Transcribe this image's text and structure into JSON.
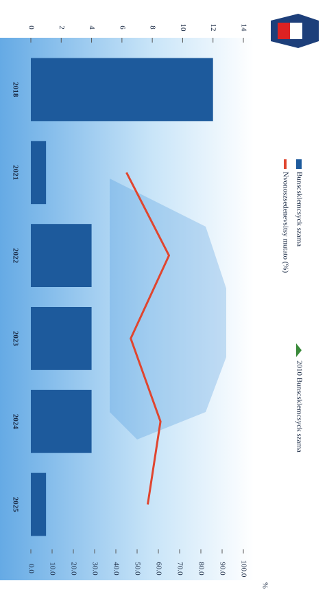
{
  "chart_data": {
    "type": "bar_line",
    "categories": [
      "2018",
      "2021",
      "2022",
      "2023",
      "2024",
      "2025"
    ],
    "series": [
      {
        "name": "Bunscsklemcsyck szama",
        "color": "#1d5a9c",
        "values": [
          12,
          1,
          4,
          4,
          4,
          1
        ]
      },
      {
        "name": "Nvonoszsedenevsitsy mutato (%)",
        "color": "#e0452f",
        "axis": "y2",
        "values": [
          null,
          45,
          65,
          47,
          61,
          55
        ]
      }
    ],
    "legend_note": "2010 Bunscsklemcsyck szama",
    "y2_label": "%",
    "ylim": [
      0,
      14
    ],
    "yticks": [
      0,
      2,
      4,
      6,
      8,
      10,
      12,
      14
    ],
    "y2lim": [
      0,
      100
    ],
    "y2ticks": [
      {
        "value": 0,
        "label": "0.0"
      },
      {
        "value": 10,
        "label": "10.0"
      },
      {
        "value": 20,
        "label": "20.0"
      },
      {
        "value": 30,
        "label": "30.0"
      },
      {
        "value": 40,
        "label": "40.0"
      },
      {
        "value": 50,
        "label": "50.0"
      },
      {
        "value": 60,
        "label": "60.0"
      },
      {
        "value": 70,
        "label": "70.0"
      },
      {
        "value": 80,
        "label": "80.0"
      },
      {
        "value": 90,
        "label": "90.0"
      },
      {
        "value": 100,
        "label": "100.0"
      }
    ]
  }
}
